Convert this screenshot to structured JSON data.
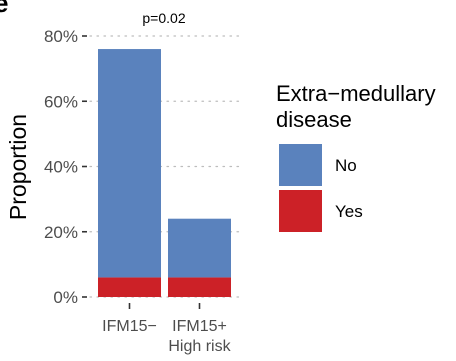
{
  "chart_data": {
    "type": "bar",
    "stacked": true,
    "categories": [
      "IFM15−",
      "IFM15+\nHigh risk"
    ],
    "series": [
      {
        "name": "Yes",
        "values": [
          6,
          6
        ],
        "color": "#cc2127"
      },
      {
        "name": "No",
        "values": [
          70,
          18
        ],
        "color": "#5a82bd"
      }
    ],
    "ylabel": "Proportion",
    "yticks": [
      0,
      20,
      40,
      60,
      80
    ],
    "ytick_labels": [
      "0%",
      "20%",
      "40%",
      "60%",
      "80%"
    ],
    "ylim": [
      0,
      82
    ],
    "grid": "horizontal dotted",
    "annotation": "p=0.02",
    "legend": {
      "title": "Extra−medullary\ndisease",
      "placement": "right",
      "entries": [
        {
          "label": "No",
          "color": "#5a82bd"
        },
        {
          "label": "Yes",
          "color": "#cc2127"
        }
      ]
    },
    "partial_panel_label": "e"
  }
}
